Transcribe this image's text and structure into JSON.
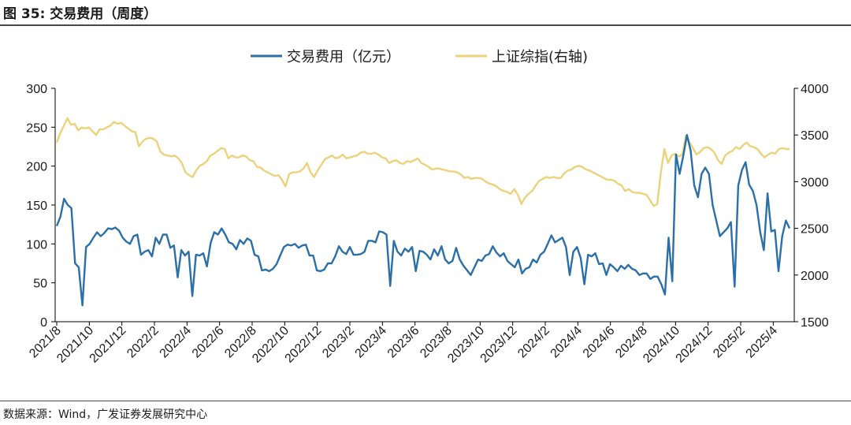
{
  "figure": {
    "title": "图 35:  交易费用（周度）",
    "source": "数据来源：Wind，广发证券发展研究中心"
  },
  "colors": {
    "fee_line": "#2b6fa8",
    "index_line": "#ecd27a",
    "axis": "#000000"
  },
  "chart_data": {
    "type": "line",
    "title": "",
    "legend": {
      "position": "top-center",
      "entries": [
        "交易费用（亿元）",
        "上证综指(右轴)"
      ]
    },
    "grid": false,
    "x_tick_labels": [
      "2021/8",
      "2021/10",
      "2021/12",
      "2022/2",
      "2022/4",
      "2022/6",
      "2022/8",
      "2022/10",
      "2022/12",
      "2023/2",
      "2023/4",
      "2023/6",
      "2023/8",
      "2023/10",
      "2023/12",
      "2024/2",
      "2024/4",
      "2024/6",
      "2024/8",
      "2024/10",
      "2024/12",
      "2025/2",
      "2025/4"
    ],
    "x_range": [
      "2021-08",
      "2025-05"
    ],
    "y_left": {
      "label": "",
      "range": [
        0,
        300
      ],
      "ticks": [
        0,
        50,
        100,
        150,
        200,
        250,
        300
      ]
    },
    "y_right": {
      "label": "",
      "range": [
        1500,
        4000
      ],
      "ticks": [
        1500,
        2000,
        2500,
        3000,
        3500,
        4000
      ]
    },
    "series": [
      {
        "name": "交易费用（亿元）",
        "axis": "left",
        "values": [
          123,
          135,
          158,
          150,
          146,
          75,
          70,
          21,
          96,
          100,
          108,
          115,
          110,
          114,
          120,
          119,
          121,
          117,
          108,
          103,
          100,
          110,
          112,
          86,
          90,
          92,
          84,
          108,
          100,
          112,
          112,
          95,
          98,
          57,
          92,
          85,
          90,
          33,
          86,
          85,
          88,
          71,
          101,
          115,
          112,
          120,
          112,
          102,
          100,
          93,
          105,
          100,
          107,
          104,
          86,
          84,
          66,
          67,
          65,
          68,
          74,
          85,
          96,
          99,
          98,
          100,
          95,
          98,
          99,
          85,
          85,
          66,
          65,
          67,
          75,
          75,
          84,
          97,
          90,
          87,
          96,
          86,
          86,
          87,
          90,
          104,
          104,
          102,
          116,
          115,
          112,
          46,
          104,
          90,
          85,
          94,
          90,
          96,
          65,
          91,
          90,
          86,
          80,
          93,
          85,
          97,
          80,
          75,
          78,
          95,
          80,
          72,
          66,
          60,
          70,
          80,
          78,
          85,
          87,
          97,
          89,
          84,
          88,
          78,
          74,
          70,
          80,
          62,
          68,
          70,
          80,
          76,
          86,
          90,
          100,
          111,
          102,
          105,
          108,
          96,
          60,
          90,
          96,
          82,
          48,
          86,
          84,
          88,
          74,
          75,
          60,
          74,
          70,
          65,
          72,
          68,
          73,
          68,
          66,
          60,
          62,
          62,
          55,
          58,
          58,
          48,
          35,
          108,
          52,
          215,
          190,
          213,
          240,
          220,
          175,
          160,
          190,
          198,
          190,
          150,
          130,
          110,
          115,
          120,
          128,
          45,
          175,
          195,
          205,
          176,
          168,
          150,
          115,
          92,
          165,
          116,
          118,
          65,
          110,
          130,
          120
        ],
        "description_values_note": "weekly, left axis"
      },
      {
        "name": "上证综指(右轴)",
        "axis": "right",
        "values": [
          3420,
          3520,
          3600,
          3680,
          3610,
          3620,
          3550,
          3580,
          3570,
          3580,
          3540,
          3500,
          3560,
          3560,
          3580,
          3600,
          3640,
          3620,
          3630,
          3600,
          3570,
          3540,
          3530,
          3380,
          3430,
          3460,
          3470,
          3460,
          3430,
          3320,
          3290,
          3280,
          3270,
          3280,
          3250,
          3200,
          3100,
          3070,
          3050,
          3120,
          3170,
          3190,
          3220,
          3280,
          3300,
          3330,
          3360,
          3350,
          3250,
          3280,
          3260,
          3260,
          3280,
          3270,
          3230,
          3220,
          3160,
          3150,
          3120,
          3100,
          3080,
          3060,
          3070,
          3020,
          2950,
          3080,
          3100,
          3100,
          3110,
          3140,
          3200,
          3100,
          3050,
          3120,
          3180,
          3240,
          3260,
          3280,
          3250,
          3260,
          3290,
          3250,
          3260,
          3270,
          3280,
          3310,
          3320,
          3300,
          3300,
          3310,
          3290,
          3260,
          3250,
          3200,
          3220,
          3230,
          3200,
          3190,
          3220,
          3210,
          3230,
          3250,
          3200,
          3180,
          3160,
          3130,
          3140,
          3140,
          3130,
          3120,
          3110,
          3110,
          3100,
          3080,
          3040,
          3050,
          3030,
          3040,
          3040,
          3030,
          3000,
          2980,
          2970,
          2950,
          2920,
          2900,
          2890,
          2870,
          2920,
          2860,
          2760,
          2830,
          2870,
          2900,
          2960,
          3010,
          3030,
          3050,
          3040,
          3050,
          3040,
          3040,
          3090,
          3120,
          3130,
          3160,
          3170,
          3160,
          3130,
          3120,
          3100,
          3080,
          3060,
          3040,
          3020,
          3020,
          3010,
          2980,
          2960,
          2900,
          2920,
          2890,
          2880,
          2880,
          2870,
          2860,
          2800,
          2740,
          2760,
          3100,
          3350,
          3200,
          3280,
          3300,
          3270,
          3290,
          3490,
          3420,
          3360,
          3290,
          3320,
          3360,
          3370,
          3350,
          3310,
          3230,
          3190,
          3280,
          3310,
          3330,
          3370,
          3350,
          3390,
          3420,
          3380,
          3370,
          3350,
          3300,
          3260,
          3290,
          3310,
          3300,
          3350,
          3360,
          3350,
          3350
        ]
      }
    ]
  }
}
